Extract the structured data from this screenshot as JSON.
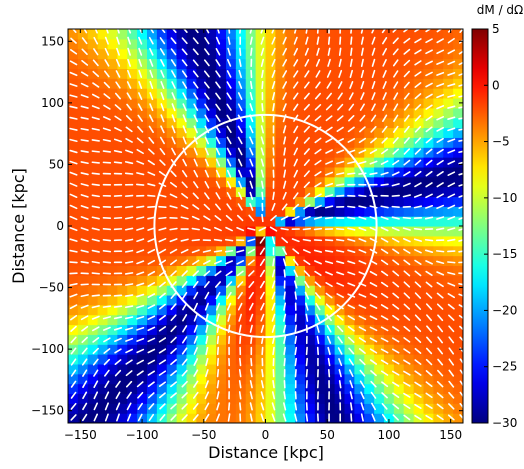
{
  "chart_data": {
    "type": "heatmap",
    "xlabel": "Distance [kpc]",
    "ylabel": "Distance [kpc]",
    "xlim": [
      -160,
      160
    ],
    "ylim": [
      -160,
      160
    ],
    "x_ticks": [
      -150,
      -100,
      -50,
      0,
      50,
      100,
      150
    ],
    "y_ticks": [
      -150,
      -100,
      -50,
      0,
      50,
      100,
      150
    ],
    "x_tick_labels": [
      "−150",
      "−100",
      "−50",
      "0",
      "50",
      "100",
      "150"
    ],
    "y_tick_labels": [
      "−150",
      "−100",
      "−50",
      "0",
      "50",
      "100",
      "150"
    ],
    "colorbar": {
      "title": "dM / dΩ",
      "range": [
        -30,
        5
      ],
      "ticks": [
        5,
        0,
        -5,
        -10,
        -15,
        -20,
        -25,
        -30
      ],
      "tick_labels": [
        "5",
        "0",
        "−5",
        "−10",
        "−15",
        "−20",
        "−25",
        "−30"
      ],
      "colormap": "jet"
    },
    "background_level": -2,
    "low_density_bands": [
      {
        "angle_deg": 110,
        "value": -30
      },
      {
        "angle_deg": 290,
        "value": -30
      },
      {
        "angle_deg": 228,
        "value": -30
      },
      {
        "angle_deg": 15,
        "value": -30
      }
    ],
    "high_density_region": {
      "center": [
        15,
        -60
      ],
      "value": 1
    },
    "nucleus": {
      "center": [
        -4,
        -12
      ],
      "value": 5
    },
    "circle": {
      "center": [
        0,
        0
      ],
      "radius": 90,
      "color": "#ffffff"
    },
    "vector_field": {
      "spacing": 9,
      "color": "#ffffff"
    },
    "grid": false,
    "legend": "none"
  }
}
